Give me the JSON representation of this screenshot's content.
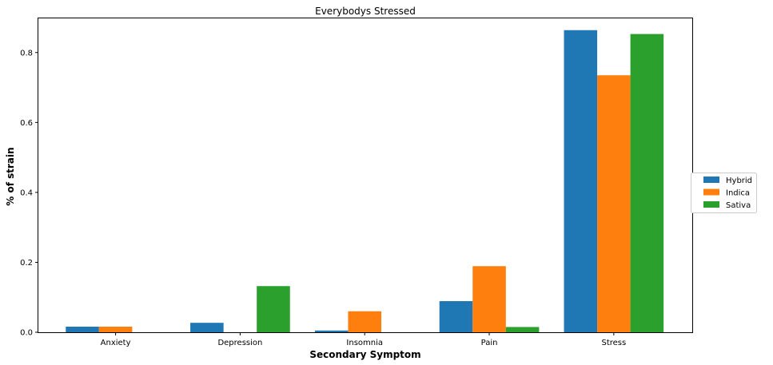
{
  "chart_data": {
    "type": "bar",
    "title": "Everybodys Stressed",
    "xlabel": "Secondary Symptom",
    "ylabel": "% of strain",
    "categories": [
      "Anxiety",
      "Depression",
      "Insomnia",
      "Pain",
      "Stress"
    ],
    "series": [
      {
        "name": "Hybrid",
        "color": "#1f77b4",
        "values": [
          0.016,
          0.027,
          0.005,
          0.089,
          0.864
        ]
      },
      {
        "name": "Indica",
        "color": "#ff7f0e",
        "values": [
          0.016,
          0.0,
          0.06,
          0.189,
          0.735
        ]
      },
      {
        "name": "Sativa",
        "color": "#2ca02c",
        "values": [
          0.0,
          0.132,
          0.0,
          0.015,
          0.853
        ]
      }
    ],
    "ylim": [
      0,
      0.9
    ],
    "yticks": [
      "0.0",
      "0.2",
      "0.4",
      "0.6",
      "0.8"
    ],
    "ytick_values": [
      0,
      0.2,
      0.4,
      0.6,
      0.8
    ],
    "grid": false,
    "legend_position": "center-right"
  }
}
